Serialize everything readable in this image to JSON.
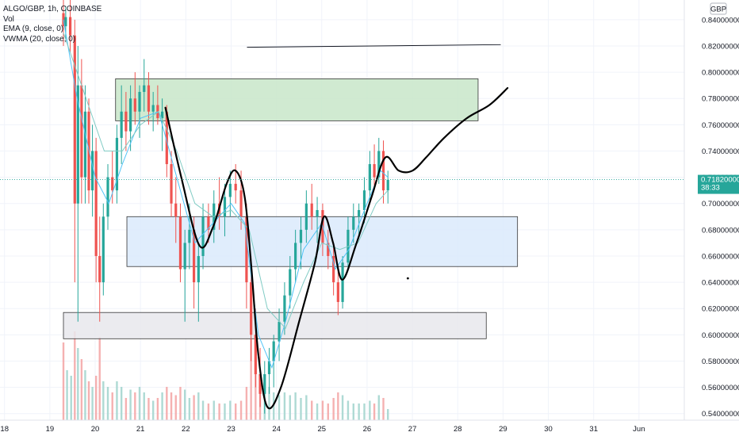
{
  "legend": {
    "symbol": "ALGO/GBP, 1h, COINBASE",
    "vol": "Vol",
    "ema": "EMA (9, close, 0)",
    "vwma": "VWMA (20, close, 0)"
  },
  "chart_data": {
    "type": "candlestick",
    "currency": "GBP",
    "price_ticks": [
      "0.84000000",
      "0.82000000",
      "0.80000000",
      "0.78000000",
      "0.76000000",
      "0.74000000",
      "0.72000000",
      "0.70000000",
      "0.68000000",
      "0.66000000",
      "0.64000000",
      "0.62000000",
      "0.60000000",
      "0.58000000",
      "0.56000000",
      "0.54000000"
    ],
    "price_tick_values": [
      0.84,
      0.82,
      0.8,
      0.78,
      0.76,
      0.74,
      0.72,
      0.7,
      0.68,
      0.66,
      0.64,
      0.62,
      0.6,
      0.58,
      0.56,
      0.54
    ],
    "date_ticks": [
      "18",
      "19",
      "20",
      "21",
      "22",
      "23",
      "24",
      "25",
      "26",
      "27",
      "28",
      "29",
      "30",
      "31",
      "Jun"
    ],
    "date_tick_days": [
      18,
      19,
      20,
      21,
      22,
      23,
      24,
      25,
      26,
      27,
      28,
      29,
      30,
      31,
      32
    ],
    "ylim": [
      0.535,
      0.855
    ],
    "xlim_days": [
      17.9,
      33.0
    ],
    "last_price": "0.71820000",
    "last_price_value": 0.7182,
    "countdown": "38:33",
    "colors": {
      "up": "#26a69a",
      "down": "#ef5350",
      "ema": "#4fc3f7",
      "vwma": "#80cbc4",
      "grid": "#f0f3fa"
    },
    "candles": [
      {
        "t": 19.3,
        "o": 0.845,
        "h": 0.86,
        "l": 0.82,
        "c": 0.835
      },
      {
        "t": 19.35,
        "o": 0.835,
        "h": 0.85,
        "l": 0.825,
        "c": 0.842
      },
      {
        "t": 19.45,
        "o": 0.842,
        "h": 0.855,
        "l": 0.815,
        "c": 0.828
      },
      {
        "t": 19.55,
        "o": 0.828,
        "h": 0.84,
        "l": 0.64,
        "c": 0.7
      },
      {
        "t": 19.62,
        "o": 0.7,
        "h": 0.82,
        "l": 0.61,
        "c": 0.79
      },
      {
        "t": 19.7,
        "o": 0.79,
        "h": 0.81,
        "l": 0.7,
        "c": 0.72
      },
      {
        "t": 19.78,
        "o": 0.72,
        "h": 0.79,
        "l": 0.7,
        "c": 0.77
      },
      {
        "t": 19.86,
        "o": 0.77,
        "h": 0.78,
        "l": 0.7,
        "c": 0.71
      },
      {
        "t": 19.94,
        "o": 0.71,
        "h": 0.76,
        "l": 0.69,
        "c": 0.74
      },
      {
        "t": 20.02,
        "o": 0.74,
        "h": 0.75,
        "l": 0.64,
        "c": 0.66
      },
      {
        "t": 20.1,
        "o": 0.66,
        "h": 0.69,
        "l": 0.61,
        "c": 0.64
      },
      {
        "t": 20.18,
        "o": 0.64,
        "h": 0.7,
        "l": 0.63,
        "c": 0.69
      },
      {
        "t": 20.28,
        "o": 0.69,
        "h": 0.73,
        "l": 0.68,
        "c": 0.72
      },
      {
        "t": 20.38,
        "o": 0.72,
        "h": 0.74,
        "l": 0.7,
        "c": 0.71
      },
      {
        "t": 20.48,
        "o": 0.71,
        "h": 0.76,
        "l": 0.7,
        "c": 0.75
      },
      {
        "t": 20.58,
        "o": 0.75,
        "h": 0.79,
        "l": 0.73,
        "c": 0.77
      },
      {
        "t": 20.68,
        "o": 0.77,
        "h": 0.785,
        "l": 0.74,
        "c": 0.755
      },
      {
        "t": 20.78,
        "o": 0.755,
        "h": 0.79,
        "l": 0.74,
        "c": 0.78
      },
      {
        "t": 20.88,
        "o": 0.78,
        "h": 0.8,
        "l": 0.76,
        "c": 0.77
      },
      {
        "t": 20.98,
        "o": 0.77,
        "h": 0.79,
        "l": 0.75,
        "c": 0.785
      },
      {
        "t": 21.08,
        "o": 0.785,
        "h": 0.81,
        "l": 0.77,
        "c": 0.79
      },
      {
        "t": 21.18,
        "o": 0.79,
        "h": 0.8,
        "l": 0.76,
        "c": 0.77
      },
      {
        "t": 21.28,
        "o": 0.77,
        "h": 0.785,
        "l": 0.755,
        "c": 0.775
      },
      {
        "t": 21.38,
        "o": 0.775,
        "h": 0.79,
        "l": 0.76,
        "c": 0.765
      },
      {
        "t": 21.48,
        "o": 0.765,
        "h": 0.78,
        "l": 0.74,
        "c": 0.77
      },
      {
        "t": 21.58,
        "o": 0.77,
        "h": 0.775,
        "l": 0.72,
        "c": 0.73
      },
      {
        "t": 21.68,
        "o": 0.73,
        "h": 0.74,
        "l": 0.69,
        "c": 0.7
      },
      {
        "t": 21.78,
        "o": 0.7,
        "h": 0.72,
        "l": 0.67,
        "c": 0.69
      },
      {
        "t": 21.88,
        "o": 0.69,
        "h": 0.7,
        "l": 0.64,
        "c": 0.65
      },
      {
        "t": 21.98,
        "o": 0.65,
        "h": 0.68,
        "l": 0.61,
        "c": 0.67
      },
      {
        "t": 22.08,
        "o": 0.67,
        "h": 0.7,
        "l": 0.65,
        "c": 0.68
      },
      {
        "t": 22.18,
        "o": 0.68,
        "h": 0.69,
        "l": 0.62,
        "c": 0.64
      },
      {
        "t": 22.28,
        "o": 0.64,
        "h": 0.67,
        "l": 0.61,
        "c": 0.66
      },
      {
        "t": 22.38,
        "o": 0.66,
        "h": 0.7,
        "l": 0.65,
        "c": 0.69
      },
      {
        "t": 22.5,
        "o": 0.69,
        "h": 0.7,
        "l": 0.67,
        "c": 0.68
      },
      {
        "t": 22.62,
        "o": 0.68,
        "h": 0.71,
        "l": 0.67,
        "c": 0.7
      },
      {
        "t": 22.74,
        "o": 0.7,
        "h": 0.72,
        "l": 0.68,
        "c": 0.69
      },
      {
        "t": 22.86,
        "o": 0.69,
        "h": 0.715,
        "l": 0.675,
        "c": 0.705
      },
      {
        "t": 22.98,
        "o": 0.705,
        "h": 0.725,
        "l": 0.69,
        "c": 0.715
      },
      {
        "t": 23.1,
        "o": 0.715,
        "h": 0.73,
        "l": 0.7,
        "c": 0.71
      },
      {
        "t": 23.22,
        "o": 0.71,
        "h": 0.725,
        "l": 0.68,
        "c": 0.69
      },
      {
        "t": 23.34,
        "o": 0.69,
        "h": 0.7,
        "l": 0.62,
        "c": 0.64
      },
      {
        "t": 23.44,
        "o": 0.64,
        "h": 0.66,
        "l": 0.58,
        "c": 0.6
      },
      {
        "t": 23.54,
        "o": 0.6,
        "h": 0.62,
        "l": 0.56,
        "c": 0.57
      },
      {
        "t": 23.64,
        "o": 0.57,
        "h": 0.59,
        "l": 0.545,
        "c": 0.555
      },
      {
        "t": 23.74,
        "o": 0.555,
        "h": 0.58,
        "l": 0.54,
        "c": 0.57
      },
      {
        "t": 23.84,
        "o": 0.57,
        "h": 0.59,
        "l": 0.555,
        "c": 0.58
      },
      {
        "t": 23.94,
        "o": 0.58,
        "h": 0.6,
        "l": 0.56,
        "c": 0.595
      },
      {
        "t": 24.06,
        "o": 0.595,
        "h": 0.62,
        "l": 0.58,
        "c": 0.61
      },
      {
        "t": 24.18,
        "o": 0.61,
        "h": 0.64,
        "l": 0.6,
        "c": 0.63
      },
      {
        "t": 24.3,
        "o": 0.63,
        "h": 0.66,
        "l": 0.62,
        "c": 0.65
      },
      {
        "t": 24.42,
        "o": 0.65,
        "h": 0.68,
        "l": 0.64,
        "c": 0.67
      },
      {
        "t": 24.54,
        "o": 0.67,
        "h": 0.69,
        "l": 0.65,
        "c": 0.68
      },
      {
        "t": 24.66,
        "o": 0.68,
        "h": 0.71,
        "l": 0.67,
        "c": 0.7
      },
      {
        "t": 24.78,
        "o": 0.7,
        "h": 0.715,
        "l": 0.68,
        "c": 0.69
      },
      {
        "t": 24.9,
        "o": 0.69,
        "h": 0.705,
        "l": 0.67,
        "c": 0.695
      },
      {
        "t": 25.02,
        "o": 0.695,
        "h": 0.7,
        "l": 0.66,
        "c": 0.67
      },
      {
        "t": 25.14,
        "o": 0.67,
        "h": 0.68,
        "l": 0.65,
        "c": 0.66
      },
      {
        "t": 25.26,
        "o": 0.66,
        "h": 0.67,
        "l": 0.63,
        "c": 0.64
      },
      {
        "t": 25.36,
        "o": 0.64,
        "h": 0.65,
        "l": 0.615,
        "c": 0.625
      },
      {
        "t": 25.46,
        "o": 0.625,
        "h": 0.66,
        "l": 0.62,
        "c": 0.655
      },
      {
        "t": 25.58,
        "o": 0.655,
        "h": 0.69,
        "l": 0.65,
        "c": 0.68
      },
      {
        "t": 25.7,
        "o": 0.68,
        "h": 0.7,
        "l": 0.67,
        "c": 0.69
      },
      {
        "t": 25.82,
        "o": 0.69,
        "h": 0.7,
        "l": 0.675,
        "c": 0.695
      },
      {
        "t": 25.94,
        "o": 0.695,
        "h": 0.72,
        "l": 0.685,
        "c": 0.71
      },
      {
        "t": 26.06,
        "o": 0.71,
        "h": 0.74,
        "l": 0.7,
        "c": 0.73
      },
      {
        "t": 26.16,
        "o": 0.73,
        "h": 0.745,
        "l": 0.71,
        "c": 0.72
      },
      {
        "t": 26.26,
        "o": 0.72,
        "h": 0.75,
        "l": 0.715,
        "c": 0.74
      },
      {
        "t": 26.36,
        "o": 0.74,
        "h": 0.748,
        "l": 0.7,
        "c": 0.71
      },
      {
        "t": 26.46,
        "o": 0.71,
        "h": 0.725,
        "l": 0.7,
        "c": 0.718
      }
    ],
    "ema_points": [
      [
        19.3,
        0.84
      ],
      [
        19.6,
        0.78
      ],
      [
        20.0,
        0.72
      ],
      [
        20.3,
        0.7
      ],
      [
        20.6,
        0.73
      ],
      [
        21.0,
        0.765
      ],
      [
        21.4,
        0.77
      ],
      [
        21.8,
        0.72
      ],
      [
        22.2,
        0.67
      ],
      [
        22.6,
        0.685
      ],
      [
        23.0,
        0.7
      ],
      [
        23.3,
        0.685
      ],
      [
        23.6,
        0.6
      ],
      [
        23.9,
        0.575
      ],
      [
        24.2,
        0.61
      ],
      [
        24.6,
        0.665
      ],
      [
        25.0,
        0.685
      ],
      [
        25.3,
        0.65
      ],
      [
        25.6,
        0.665
      ],
      [
        26.0,
        0.7
      ],
      [
        26.3,
        0.725
      ],
      [
        26.46,
        0.72
      ]
    ],
    "vwma_points": [
      [
        19.3,
        0.83
      ],
      [
        19.8,
        0.78
      ],
      [
        20.2,
        0.74
      ],
      [
        20.6,
        0.74
      ],
      [
        21.0,
        0.76
      ],
      [
        21.4,
        0.77
      ],
      [
        21.8,
        0.74
      ],
      [
        22.2,
        0.7
      ],
      [
        22.6,
        0.69
      ],
      [
        23.0,
        0.695
      ],
      [
        23.4,
        0.68
      ],
      [
        23.8,
        0.62
      ],
      [
        24.2,
        0.605
      ],
      [
        24.6,
        0.64
      ],
      [
        25.0,
        0.67
      ],
      [
        25.4,
        0.665
      ],
      [
        25.8,
        0.67
      ],
      [
        26.2,
        0.7
      ],
      [
        26.46,
        0.71
      ]
    ],
    "volumes": [
      [
        19.3,
        1.4
      ],
      [
        19.38,
        0.9
      ],
      [
        19.47,
        0.8
      ],
      [
        19.55,
        1.6
      ],
      [
        19.62,
        1.3
      ],
      [
        19.7,
        1.1
      ],
      [
        19.78,
        0.9
      ],
      [
        19.86,
        0.7
      ],
      [
        19.94,
        0.6
      ],
      [
        20.02,
        0.8
      ],
      [
        20.1,
        1.5
      ],
      [
        20.18,
        0.7
      ],
      [
        20.28,
        0.6
      ],
      [
        20.38,
        0.5
      ],
      [
        20.48,
        0.7
      ],
      [
        20.58,
        0.6
      ],
      [
        20.68,
        0.4
      ],
      [
        20.78,
        0.55
      ],
      [
        20.88,
        0.5
      ],
      [
        20.98,
        0.6
      ],
      [
        21.08,
        0.5
      ],
      [
        21.18,
        0.4
      ],
      [
        21.28,
        0.35
      ],
      [
        21.38,
        0.4
      ],
      [
        21.48,
        0.5
      ],
      [
        21.58,
        0.6
      ],
      [
        21.68,
        0.5
      ],
      [
        21.78,
        0.45
      ],
      [
        21.88,
        0.6
      ],
      [
        21.98,
        0.55
      ],
      [
        22.08,
        0.4
      ],
      [
        22.18,
        0.45
      ],
      [
        22.28,
        0.5
      ],
      [
        22.38,
        0.35
      ],
      [
        22.5,
        0.3
      ],
      [
        22.62,
        0.35
      ],
      [
        22.74,
        0.3
      ],
      [
        22.86,
        0.3
      ],
      [
        22.98,
        0.35
      ],
      [
        23.1,
        0.3
      ],
      [
        23.22,
        0.35
      ],
      [
        23.34,
        0.6
      ],
      [
        23.44,
        1.5
      ],
      [
        23.54,
        0.9
      ],
      [
        23.64,
        0.8
      ],
      [
        23.74,
        0.7
      ],
      [
        23.84,
        0.6
      ],
      [
        23.94,
        0.5
      ],
      [
        24.06,
        0.45
      ],
      [
        24.18,
        0.5
      ],
      [
        24.3,
        0.45
      ],
      [
        24.42,
        0.5
      ],
      [
        24.54,
        0.4
      ],
      [
        24.66,
        0.45
      ],
      [
        24.78,
        0.35
      ],
      [
        24.9,
        0.3
      ],
      [
        25.02,
        0.35
      ],
      [
        25.14,
        0.3
      ],
      [
        25.26,
        0.4
      ],
      [
        25.36,
        0.5
      ],
      [
        25.46,
        0.45
      ],
      [
        25.58,
        0.35
      ],
      [
        25.7,
        0.3
      ],
      [
        25.82,
        0.3
      ],
      [
        25.94,
        0.3
      ],
      [
        26.06,
        0.35
      ],
      [
        26.16,
        0.3
      ],
      [
        26.26,
        0.45
      ],
      [
        26.36,
        0.4
      ],
      [
        26.46,
        0.2
      ]
    ],
    "zones": [
      {
        "name": "resistance-zone",
        "d1": 20.45,
        "d2": 28.45,
        "p1": 0.795,
        "p2": 0.763,
        "fill": "#c8e6c9",
        "stroke": "#333333"
      },
      {
        "name": "mid-zone",
        "d1": 20.7,
        "d2": 29.32,
        "p1": 0.69,
        "p2": 0.652,
        "fill": "#dbeafb",
        "stroke": "#333333"
      },
      {
        "name": "support-zone",
        "d1": 19.3,
        "d2": 28.63,
        "p1": 0.617,
        "p2": 0.597,
        "fill": "#e8e8ec",
        "stroke": "#333333"
      }
    ],
    "trend_line": [
      [
        23.35,
        0.819
      ],
      [
        28.95,
        0.821
      ]
    ],
    "projection": [
      [
        21.55,
        0.773
      ],
      [
        21.9,
        0.72
      ],
      [
        22.3,
        0.668
      ],
      [
        22.6,
        0.682
      ],
      [
        22.9,
        0.715
      ],
      [
        23.1,
        0.725
      ],
      [
        23.3,
        0.705
      ],
      [
        23.45,
        0.65
      ],
      [
        23.6,
        0.585
      ],
      [
        23.8,
        0.545
      ],
      [
        24.1,
        0.56
      ],
      [
        24.5,
        0.61
      ],
      [
        24.85,
        0.655
      ],
      [
        25.05,
        0.69
      ],
      [
        25.25,
        0.67
      ],
      [
        25.45,
        0.642
      ],
      [
        25.75,
        0.668
      ],
      [
        26.1,
        0.705
      ],
      [
        26.4,
        0.735
      ],
      [
        26.7,
        0.725
      ],
      [
        27.0,
        0.725
      ],
      [
        27.3,
        0.735
      ],
      [
        27.7,
        0.75
      ],
      [
        28.2,
        0.765
      ],
      [
        28.7,
        0.775
      ],
      [
        29.1,
        0.788
      ]
    ],
    "dot": [
      26.9,
      0.643
    ]
  }
}
